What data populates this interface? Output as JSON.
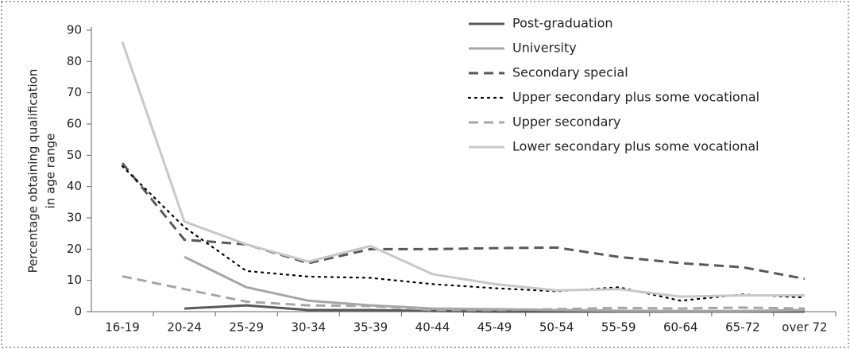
{
  "chart_data": {
    "type": "line",
    "y_label": [
      "Percentage obtaining qualification",
      "in age range"
    ],
    "categories": [
      "16-19",
      "20-24",
      "25-29",
      "30-34",
      "35-39",
      "40-44",
      "45-49",
      "50-54",
      "55-59",
      "60-64",
      "65-72",
      "over 72"
    ],
    "series": [
      {
        "name": "Post-graduation",
        "color": "#595959",
        "style": "solid",
        "values": [
          null,
          1,
          2,
          0.5,
          0.5,
          0.2,
          0,
          0,
          0,
          0,
          0,
          0
        ]
      },
      {
        "name": "University",
        "color": "#a6a6a6",
        "style": "solid",
        "values": [
          null,
          17.5,
          7.8,
          3.5,
          2,
          1,
          0.8,
          0.5,
          0.3,
          0.2,
          0.2,
          0.5
        ]
      },
      {
        "name": "Secondary special",
        "color": "#595959",
        "style": "dashed",
        "values": [
          47.5,
          23,
          21.5,
          15.5,
          20,
          20,
          20.3,
          20.5,
          17.5,
          15.5,
          14.2,
          10.5
        ]
      },
      {
        "name": "Upper secondary plus some vocational",
        "color": "#000000",
        "style": "dotted",
        "values": [
          46.5,
          27,
          13,
          11.2,
          10.8,
          8.8,
          7.5,
          6.5,
          7.8,
          3.5,
          5.5,
          4.5
        ]
      },
      {
        "name": "Upper secondary",
        "color": "#a6a6a6",
        "style": "dashed",
        "values": [
          11.3,
          7.2,
          3.2,
          2,
          1.8,
          0.5,
          0.5,
          0.8,
          1.2,
          1,
          1.3,
          1
        ]
      },
      {
        "name": "Lower secondary plus some vocational",
        "color": "#c8c8c8",
        "style": "solid",
        "values": [
          86.3,
          28.8,
          21.5,
          16,
          21,
          12,
          8.8,
          6.8,
          7.2,
          4.8,
          5.2,
          5.2
        ]
      }
    ],
    "ylim": [
      0,
      90
    ],
    "yticks": [
      0,
      10,
      20,
      30,
      40,
      50,
      60,
      70,
      80,
      90
    ],
    "grid": false
  }
}
